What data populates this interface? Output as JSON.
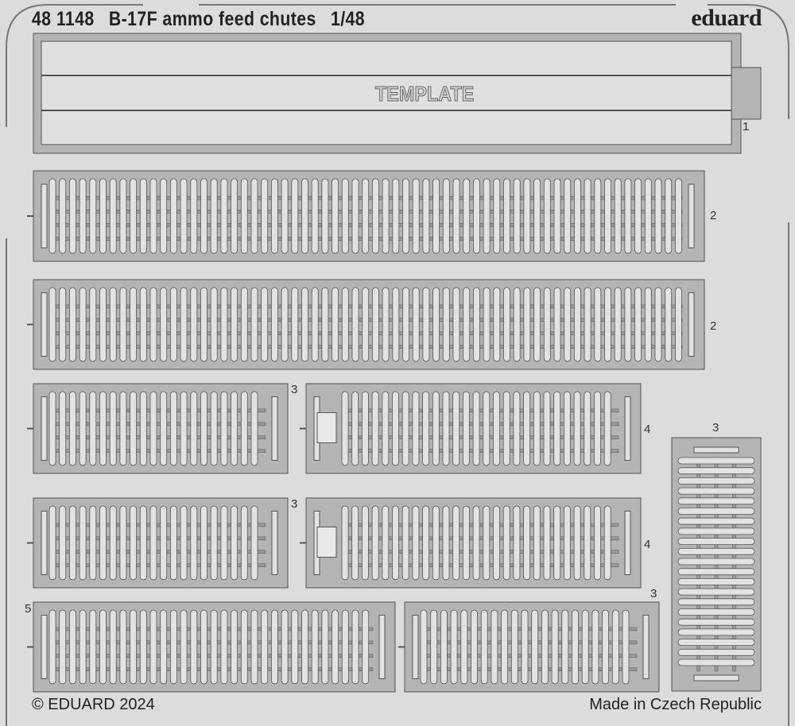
{
  "header": {
    "product_code": "48 1148",
    "product_name": "B-17F ammo feed chutes",
    "scale": "1/48",
    "brand": "eduard"
  },
  "template_label": "TEMPLATE",
  "part_numbers": {
    "template": "1",
    "chute_long_top": "2",
    "chute_long_second": "2",
    "chute_short_row3": "3",
    "chute_medium_row3": "4",
    "chute_short_row4": "3",
    "chute_medium_row4": "4",
    "chute_bottom_left": "5",
    "chute_bottom_right": "3",
    "chute_vertical": "3"
  },
  "footer": {
    "copyright": "© EDUARD 2024",
    "origin": "Made in Czech Republic"
  },
  "colors": {
    "fret": "#dcdcdc",
    "panel": "#b4b4b4",
    "link": "#e2e2e2",
    "outline": "#555555"
  }
}
